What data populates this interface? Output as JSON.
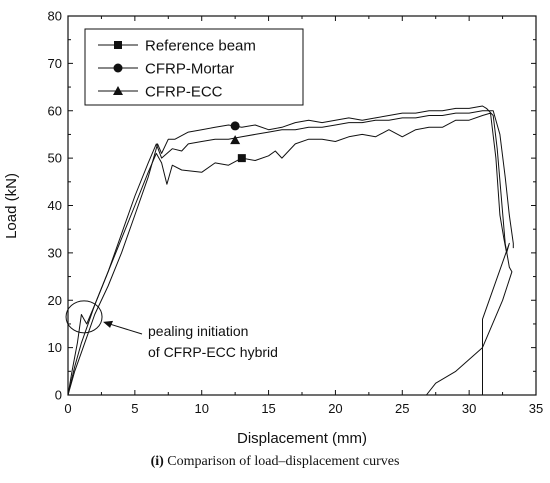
{
  "caption": {
    "label": "(i)",
    "text": "Comparison of load–displacement curves"
  },
  "chart_data": {
    "type": "line",
    "xlabel": "Displacement (mm)",
    "ylabel": "Load (kN)",
    "xlim": [
      0,
      35
    ],
    "ylim": [
      0,
      80
    ],
    "xticks": [
      0,
      5,
      10,
      15,
      20,
      25,
      30,
      35
    ],
    "yticks": [
      0,
      10,
      20,
      30,
      40,
      50,
      60,
      70,
      80
    ],
    "grid": false,
    "legend_position": "top-left",
    "series": [
      {
        "name": "Reference beam",
        "marker": "square",
        "marker_at": [
          13,
          50
        ],
        "points": [
          [
            0,
            0
          ],
          [
            0.5,
            6
          ],
          [
            1,
            11
          ],
          [
            1.5,
            15
          ],
          [
            2,
            19
          ],
          [
            3,
            26
          ],
          [
            4,
            33
          ],
          [
            5,
            40
          ],
          [
            6,
            47
          ],
          [
            6.6,
            51
          ],
          [
            7,
            49
          ],
          [
            7.4,
            44.5
          ],
          [
            7.8,
            48.5
          ],
          [
            8.5,
            47.5
          ],
          [
            10,
            47
          ],
          [
            11,
            49
          ],
          [
            12,
            48.5
          ],
          [
            13,
            50
          ],
          [
            14,
            49.5
          ],
          [
            15,
            50.5
          ],
          [
            15.5,
            51.5
          ],
          [
            16,
            50
          ],
          [
            17,
            53
          ],
          [
            18,
            54
          ],
          [
            19,
            54
          ],
          [
            20,
            53.5
          ],
          [
            21,
            54.5
          ],
          [
            22,
            55
          ],
          [
            23,
            54.5
          ],
          [
            24,
            56
          ],
          [
            25,
            54.5
          ],
          [
            26,
            56
          ],
          [
            27,
            56.5
          ],
          [
            28,
            56.5
          ],
          [
            29,
            58
          ],
          [
            30,
            58
          ],
          [
            31,
            59
          ],
          [
            31.6,
            59.5
          ],
          [
            32,
            50
          ],
          [
            32.3,
            38
          ],
          [
            32.6,
            33
          ],
          [
            32.8,
            30
          ],
          [
            33,
            32
          ],
          [
            31,
            16
          ],
          [
            31,
            0
          ]
        ]
      },
      {
        "name": "CFRP-Mortar",
        "marker": "circle",
        "marker_at": [
          12.5,
          56.8
        ],
        "points": [
          [
            0,
            0
          ],
          [
            0.5,
            5
          ],
          [
            1,
            9
          ],
          [
            1.5,
            13
          ],
          [
            2,
            17
          ],
          [
            3,
            23
          ],
          [
            4,
            30
          ],
          [
            5,
            38
          ],
          [
            6,
            46
          ],
          [
            6.7,
            53
          ],
          [
            7,
            51
          ],
          [
            7.5,
            54
          ],
          [
            8,
            54
          ],
          [
            9,
            55.5
          ],
          [
            10,
            56
          ],
          [
            11,
            56.5
          ],
          [
            12,
            57
          ],
          [
            13,
            56.5
          ],
          [
            14,
            57
          ],
          [
            15,
            56
          ],
          [
            16,
            56.5
          ],
          [
            17,
            57.5
          ],
          [
            18,
            58
          ],
          [
            19,
            57.5
          ],
          [
            20,
            58
          ],
          [
            21,
            58.5
          ],
          [
            22,
            58
          ],
          [
            23,
            58.5
          ],
          [
            24,
            59
          ],
          [
            25,
            59.5
          ],
          [
            26,
            59.5
          ],
          [
            27,
            60
          ],
          [
            28,
            60
          ],
          [
            29,
            60.5
          ],
          [
            30,
            60.5
          ],
          [
            31,
            61
          ],
          [
            31.3,
            60.5
          ],
          [
            31.8,
            59
          ],
          [
            32.1,
            52
          ],
          [
            32.4,
            42
          ],
          [
            32.7,
            32
          ],
          [
            33,
            27
          ],
          [
            33.2,
            26
          ],
          [
            32.5,
            20
          ],
          [
            31,
            10
          ],
          [
            29,
            5
          ],
          [
            27.5,
            2.5
          ],
          [
            26.8,
            0
          ]
        ]
      },
      {
        "name": "CFRP-ECC",
        "marker": "triangle",
        "marker_at": [
          12.5,
          53.8
        ],
        "points": [
          [
            0,
            0
          ],
          [
            0.3,
            5
          ],
          [
            0.7,
            11
          ],
          [
            1,
            17
          ],
          [
            1.2,
            16
          ],
          [
            1.4,
            15
          ],
          [
            2,
            19
          ],
          [
            3,
            26
          ],
          [
            4,
            34
          ],
          [
            5,
            42
          ],
          [
            6,
            49
          ],
          [
            6.6,
            53
          ],
          [
            7,
            50
          ],
          [
            7.8,
            52
          ],
          [
            8.5,
            51.5
          ],
          [
            9,
            53
          ],
          [
            10,
            53.5
          ],
          [
            11,
            54
          ],
          [
            12,
            54
          ],
          [
            13,
            54.5
          ],
          [
            14,
            55
          ],
          [
            15,
            55.5
          ],
          [
            16,
            56
          ],
          [
            17,
            56
          ],
          [
            18,
            56.5
          ],
          [
            19,
            56.5
          ],
          [
            20,
            57
          ],
          [
            21,
            57.5
          ],
          [
            22,
            57.5
          ],
          [
            23,
            58
          ],
          [
            24,
            58
          ],
          [
            25,
            58.5
          ],
          [
            26,
            58.5
          ],
          [
            27,
            59
          ],
          [
            28,
            59
          ],
          [
            29,
            59.5
          ],
          [
            30,
            59.5
          ],
          [
            31,
            60
          ],
          [
            31.8,
            60
          ],
          [
            32.3,
            55
          ],
          [
            32.7,
            46
          ],
          [
            33,
            38
          ],
          [
            33.3,
            32
          ],
          [
            33.3,
            31
          ]
        ]
      }
    ],
    "annotation": {
      "text_line1": "pealing initiation",
      "text_line2": "of CFRP-ECC hybrid",
      "ellipse_center": [
        1.2,
        16.5
      ],
      "arrow_target": [
        2.5,
        15
      ]
    }
  }
}
